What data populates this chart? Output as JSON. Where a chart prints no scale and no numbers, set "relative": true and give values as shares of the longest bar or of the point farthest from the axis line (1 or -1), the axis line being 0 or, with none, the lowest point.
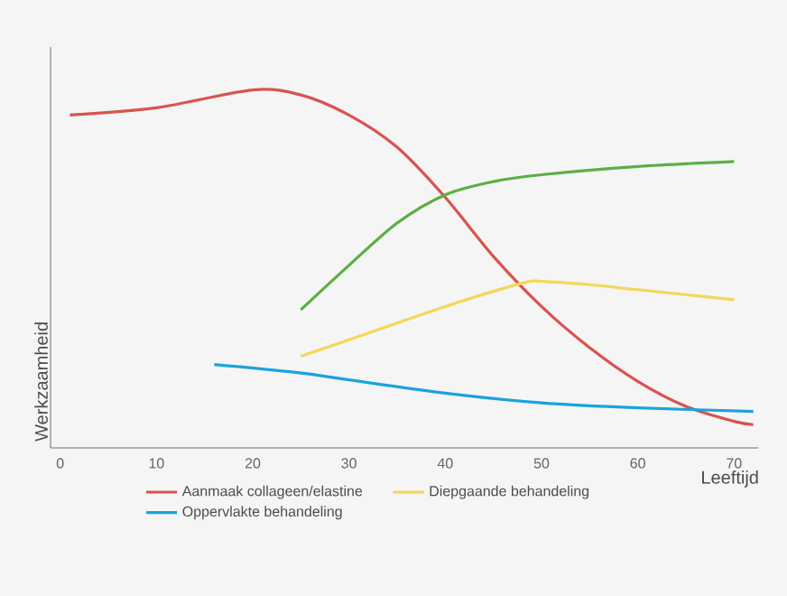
{
  "chart_data": {
    "type": "line",
    "relative": true,
    "xlabel": "Leeftijd",
    "ylabel": "Werkzaamheid",
    "xlim": [
      -1,
      72.5
    ],
    "xticks": [
      0,
      10,
      20,
      30,
      40,
      50,
      60,
      70
    ],
    "legend": "bottom",
    "series": [
      {
        "name": "Aanmaak collageen/elastine",
        "color": "#d9534f",
        "x": [
          1,
          10,
          20,
          25,
          30,
          35,
          40,
          45,
          50,
          55,
          60,
          65,
          70,
          72
        ],
        "values": [
          0.93,
          0.95,
          1.0,
          0.986,
          0.93,
          0.84,
          0.7,
          0.535,
          0.395,
          0.28,
          0.186,
          0.116,
          0.074,
          0.065
        ]
      },
      {
        "color": "#5cae45",
        "x": [
          25,
          30,
          35,
          40,
          45,
          50,
          60,
          70
        ],
        "values": [
          0.386,
          0.51,
          0.628,
          0.707,
          0.744,
          0.763,
          0.786,
          0.8
        ]
      },
      {
        "name": "Diepgaande behandeling",
        "color": "#f2d857",
        "x": [
          25,
          30,
          40,
          48,
          50,
          55,
          60,
          70
        ],
        "values": [
          0.256,
          0.302,
          0.395,
          0.46,
          0.465,
          0.456,
          0.442,
          0.414
        ]
      },
      {
        "name": "Oppervlakte behandeling",
        "color": "#1aa3dc",
        "x": [
          16,
          25,
          30,
          40,
          50,
          60,
          72
        ],
        "values": [
          0.233,
          0.209,
          0.19,
          0.153,
          0.126,
          0.112,
          0.102
        ]
      }
    ]
  }
}
